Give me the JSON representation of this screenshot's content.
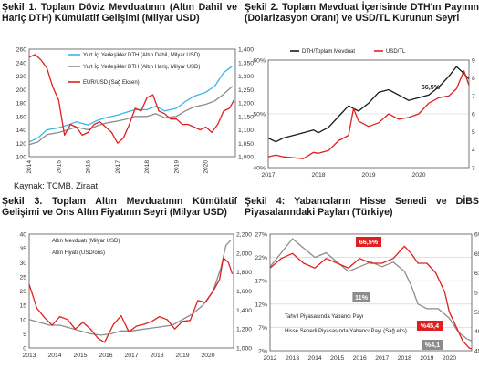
{
  "source_note": "Kaynak: TCMB, Ziraat",
  "chart_data": [
    {
      "type": "line",
      "title": "Şekil 1. Toplam Döviz Mevduatının (Altın Dahil ve Hariç DTH) Kümülatif Gelişimi (Milyar USD)",
      "x_ticks": [
        "2014",
        "2015",
        "2016",
        "2017",
        "2018",
        "2019",
        "2020"
      ],
      "x_range": [
        2014,
        2021
      ],
      "y_left": {
        "range": [
          100,
          260
        ],
        "ticks": [
          "100",
          "120",
          "140",
          "160",
          "180",
          "200",
          "220",
          "240",
          "260"
        ]
      },
      "y_right": {
        "range": [
          1.0,
          1.4
        ],
        "ticks": [
          "1,000",
          "1,050",
          "1,100",
          "1,150",
          "1,200",
          "1,250",
          "1,300",
          "1,350",
          "1,400"
        ]
      },
      "legend": [
        "Yurt İçi Yerleşikler DTH (Altın Dahil, Milyar USD)",
        "Yurt İçi Yerleşikler DTH (Altın Hariç, Milyar USD)",
        "EUR/USD (Sağ Eksen)"
      ],
      "series": [
        {
          "name": "Yurt İçi Yerleşikler DTH (Altın Dahil, Milyar USD)",
          "color": "#3ab6e6",
          "axis": "left",
          "x": [
            2014,
            2014.3,
            2014.6,
            2015,
            2015.3,
            2015.6,
            2016,
            2016.3,
            2016.6,
            2017,
            2017.3,
            2017.6,
            2018,
            2018.3,
            2018.6,
            2019,
            2019.3,
            2019.6,
            2020,
            2020.3,
            2020.6,
            2020.9
          ],
          "y": [
            122,
            128,
            140,
            143,
            147,
            152,
            147,
            154,
            158,
            162,
            166,
            170,
            170,
            175,
            168,
            172,
            182,
            190,
            196,
            205,
            225,
            235
          ]
        },
        {
          "name": "Yurt İçi Yerleşikler DTH (Altın Hariç, Milyar USD)",
          "color": "#8c8c8c",
          "axis": "left",
          "x": [
            2014,
            2014.3,
            2014.6,
            2015,
            2015.3,
            2015.6,
            2016,
            2016.3,
            2016.6,
            2017,
            2017.3,
            2017.6,
            2018,
            2018.3,
            2018.6,
            2019,
            2019.3,
            2019.6,
            2020,
            2020.3,
            2020.6,
            2020.9
          ],
          "y": [
            118,
            122,
            133,
            136,
            140,
            144,
            140,
            146,
            150,
            153,
            156,
            160,
            160,
            164,
            158,
            160,
            168,
            174,
            178,
            183,
            193,
            205
          ]
        },
        {
          "name": "EUR/USD (Sağ Eksen)",
          "color": "#e02020",
          "axis": "right",
          "x": [
            2014,
            2014.2,
            2014.4,
            2014.6,
            2014.8,
            2015,
            2015.2,
            2015.4,
            2015.6,
            2015.8,
            2016,
            2016.2,
            2016.4,
            2016.6,
            2016.8,
            2017,
            2017.2,
            2017.4,
            2017.6,
            2017.8,
            2018,
            2018.2,
            2018.4,
            2018.6,
            2018.8,
            2019,
            2019.2,
            2019.4,
            2019.6,
            2019.8,
            2020,
            2020.2,
            2020.4,
            2020.6,
            2020.8,
            2020.95
          ],
          "y": [
            1.37,
            1.38,
            1.36,
            1.33,
            1.26,
            1.21,
            1.08,
            1.12,
            1.11,
            1.08,
            1.09,
            1.12,
            1.13,
            1.11,
            1.09,
            1.05,
            1.07,
            1.12,
            1.18,
            1.17,
            1.22,
            1.23,
            1.17,
            1.16,
            1.14,
            1.14,
            1.12,
            1.12,
            1.11,
            1.1,
            1.11,
            1.09,
            1.12,
            1.17,
            1.18,
            1.21
          ]
        }
      ]
    },
    {
      "type": "line",
      "title": "Şekil 2. Toplam Mevduat İçerisinde DTH'ın Payının (Dolarizasyon Oranı) ve USD/TL Kurunun Seyri",
      "x_ticks": [
        "2017",
        "2018",
        "2019",
        "2020"
      ],
      "x_range": [
        2017,
        2021
      ],
      "y_left": {
        "range": [
          40,
          60
        ],
        "ticks": [
          "40%",
          "50%",
          "60%"
        ]
      },
      "y_right": {
        "range": [
          3,
          9
        ],
        "ticks": [
          "3",
          "4",
          "5",
          "6",
          "7",
          "8",
          "9"
        ]
      },
      "legend": [
        "DTH/Toplam Mevduat",
        "USD/TL"
      ],
      "annotations": [
        "56,5%"
      ],
      "series": [
        {
          "name": "DTH/Toplam Mevduat",
          "color": "#1a1a1a",
          "axis": "left",
          "x": [
            2017,
            2017.15,
            2017.3,
            2017.5,
            2017.7,
            2017.9,
            2018,
            2018.2,
            2018.4,
            2018.6,
            2018.8,
            2019,
            2019.2,
            2019.4,
            2019.6,
            2019.8,
            2020,
            2020.2,
            2020.4,
            2020.6,
            2020.75,
            2020.9,
            2021
          ],
          "y": [
            45.5,
            44.8,
            45.5,
            46.0,
            46.5,
            47.0,
            46.5,
            47.5,
            49.5,
            51.5,
            50.5,
            52.0,
            54.0,
            54.5,
            53.5,
            52.5,
            53.0,
            53.5,
            55.0,
            57.0,
            58.8,
            57.5,
            56.5
          ]
        },
        {
          "name": "USD/TL",
          "color": "#e02020",
          "axis": "right",
          "x": [
            2017,
            2017.15,
            2017.3,
            2017.5,
            2017.7,
            2017.9,
            2018,
            2018.2,
            2018.4,
            2018.6,
            2018.7,
            2018.8,
            2019,
            2019.2,
            2019.4,
            2019.6,
            2019.8,
            2020,
            2020.2,
            2020.4,
            2020.6,
            2020.75,
            2020.9,
            2021
          ],
          "y": [
            3.6,
            3.7,
            3.6,
            3.55,
            3.5,
            3.85,
            3.8,
            3.95,
            4.5,
            4.8,
            6.3,
            5.6,
            5.3,
            5.5,
            6.0,
            5.7,
            5.8,
            6.0,
            6.6,
            6.9,
            7.0,
            7.4,
            8.4,
            7.6
          ]
        }
      ]
    },
    {
      "type": "line",
      "title": "Şekil 3. Toplam Altın Mevduatının Kümülatif Gelişimi ve Ons Altın Fiyatının Seyri (Milyar USD)",
      "x_ticks": [
        "2013",
        "2014",
        "2015",
        "2016",
        "2017",
        "2018",
        "2019",
        "2020"
      ],
      "x_range": [
        2013,
        2021
      ],
      "y_left": {
        "range": [
          0,
          40
        ],
        "ticks": [
          "0",
          "5",
          "10",
          "15",
          "20",
          "25",
          "30",
          "35",
          "40"
        ]
      },
      "y_right": {
        "range": [
          1000,
          2200
        ],
        "ticks": [
          "1,000",
          "1,200",
          "1,400",
          "1,600",
          "1,800",
          "2,000",
          "2,200"
        ]
      },
      "legend": [
        "Altın Mevduatı (Milyar USD)",
        "Altın Fiyatı (USD/ons)"
      ],
      "series": [
        {
          "name": "Altın Mevduatı (Milyar USD)",
          "color": "#8c8c8c",
          "axis": "left",
          "x": [
            2013,
            2013.4,
            2013.8,
            2014.2,
            2014.6,
            2015,
            2015.4,
            2015.8,
            2016.2,
            2016.6,
            2017,
            2017.4,
            2017.8,
            2018.2,
            2018.6,
            2019,
            2019.4,
            2019.8,
            2020.2,
            2020.5,
            2020.7,
            2020.9
          ],
          "y": [
            10,
            9,
            8,
            8,
            7,
            6,
            5,
            4.5,
            5,
            6,
            6,
            6.5,
            7,
            7.5,
            8,
            10,
            12,
            15,
            20,
            28,
            36,
            38
          ]
        },
        {
          "name": "Altın Fiyatı (USD/ons)",
          "color": "#e02020",
          "axis": "right",
          "x": [
            2013,
            2013.3,
            2013.6,
            2013.9,
            2014.2,
            2014.5,
            2014.8,
            2015.1,
            2015.4,
            2015.7,
            2015.95,
            2016.3,
            2016.6,
            2016.9,
            2017.2,
            2017.5,
            2017.8,
            2018.1,
            2018.4,
            2018.7,
            2019,
            2019.3,
            2019.6,
            2019.9,
            2020.2,
            2020.45,
            2020.6,
            2020.8,
            2020.95
          ],
          "y": [
            1670,
            1420,
            1320,
            1240,
            1330,
            1300,
            1200,
            1270,
            1200,
            1100,
            1060,
            1250,
            1340,
            1170,
            1230,
            1250,
            1280,
            1330,
            1300,
            1200,
            1280,
            1290,
            1500,
            1480,
            1600,
            1720,
            1950,
            1900,
            1780
          ]
        }
      ]
    },
    {
      "type": "line",
      "title": "Şekil 4: Yabancıların Hisse Senedi ve DİBS Piyasalarındaki Payları (Türkiye)",
      "x_ticks": [
        "2012",
        "2013",
        "2014",
        "2015",
        "2016",
        "2017",
        "2018",
        "2019",
        "2020"
      ],
      "x_range": [
        2012,
        2021
      ],
      "y_left": {
        "range": [
          2,
          27
        ],
        "ticks": [
          "2%",
          "7%",
          "12%",
          "17%",
          "22%",
          "27%"
        ]
      },
      "y_right": {
        "range": [
          45,
          69
        ],
        "ticks": [
          "45%",
          "49%",
          "53%",
          "57%",
          "61%",
          "65%",
          "69%"
        ]
      },
      "legend": [
        "Tahvil Piyasasında Yabancı Payı",
        "Hisse Senedi Piyasasında Yabancı Payı (Sağ eks)"
      ],
      "annotations": [
        "66,5%",
        "11%",
        "%45,4",
        "%4,1"
      ],
      "series": [
        {
          "name": "Tahvil Piyasasında Yabancı Payı",
          "color": "#8c8c8c",
          "axis": "left",
          "x": [
            2012,
            2012.5,
            2013,
            2013.5,
            2014,
            2014.5,
            2015,
            2015.5,
            2016,
            2016.5,
            2017,
            2017.5,
            2018,
            2018.3,
            2018.6,
            2019,
            2019.5,
            2020,
            2020.4,
            2020.8,
            2021
          ],
          "y": [
            20,
            23,
            26,
            24,
            22,
            23,
            21,
            19,
            20,
            21,
            20,
            21,
            19,
            16,
            12,
            11,
            11,
            9,
            6,
            4.5,
            4.1
          ]
        },
        {
          "name": "Hisse Senedi Piyasasında Yabancı Payı (Sağ eks)",
          "color": "#e02020",
          "axis": "right",
          "x": [
            2012,
            2012.5,
            2013,
            2013.5,
            2014,
            2014.5,
            2015,
            2015.5,
            2016,
            2016.5,
            2017,
            2017.5,
            2018,
            2018.3,
            2018.6,
            2019,
            2019.4,
            2019.8,
            2020,
            2020.3,
            2020.6,
            2020.9,
            2021
          ],
          "y": [
            62,
            64,
            65,
            63,
            62,
            64,
            63,
            62,
            64,
            63,
            63,
            64,
            66.5,
            65,
            63,
            63,
            61,
            57,
            53,
            50,
            47,
            45.5,
            45.4
          ]
        }
      ]
    }
  ]
}
